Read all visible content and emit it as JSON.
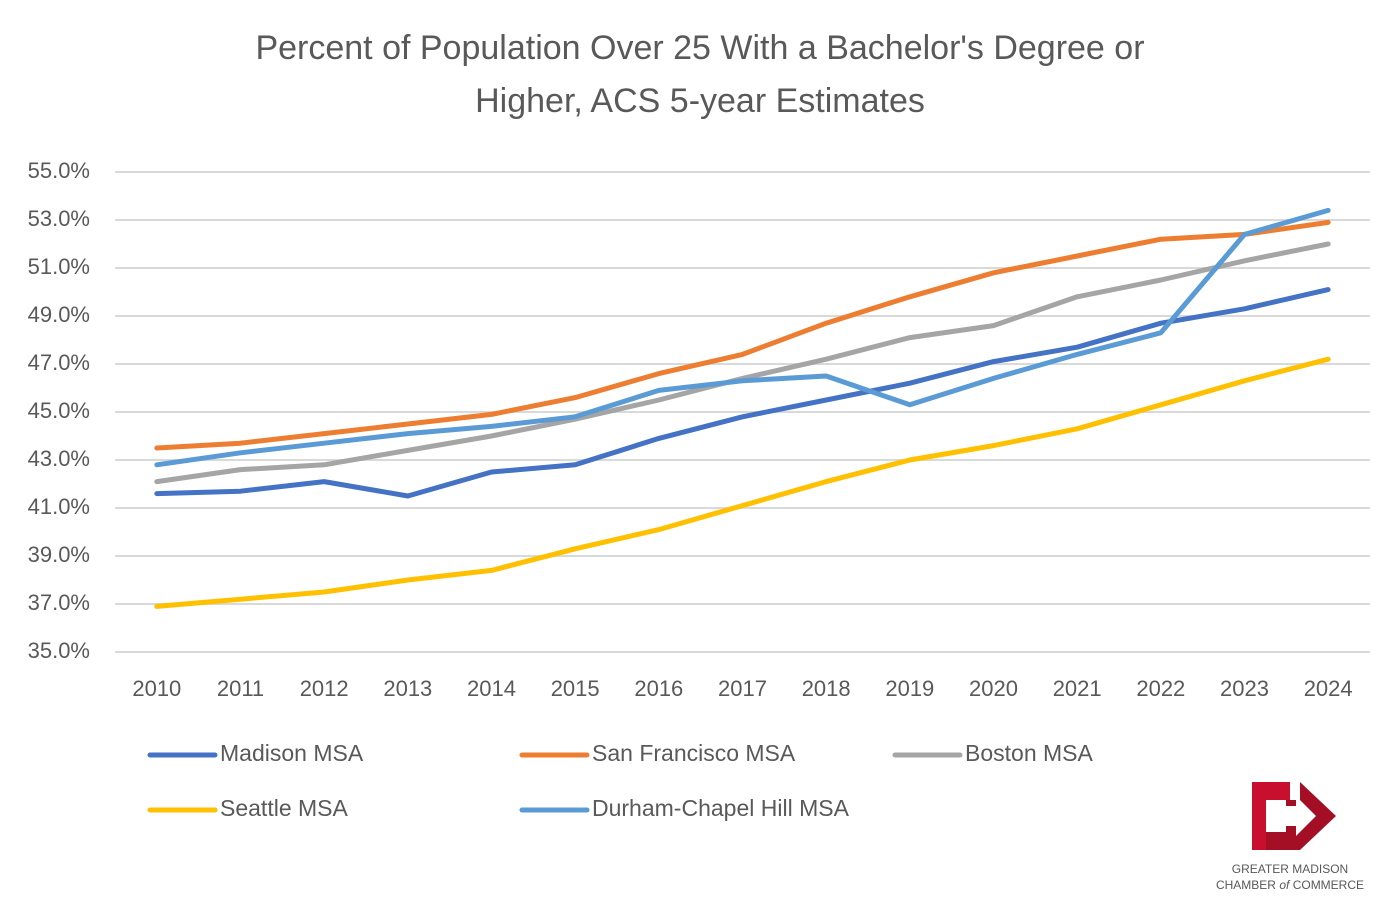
{
  "chart_data": {
    "type": "line",
    "title": [
      "Percent of Population Over 25 With a Bachelor's Degree or",
      "Higher, ACS 5-year Estimates"
    ],
    "categories": [
      "2010",
      "2011",
      "2012",
      "2013",
      "2014",
      "2015",
      "2016",
      "2017",
      "2018",
      "2019",
      "2020",
      "2021",
      "2022",
      "2023",
      "2024"
    ],
    "series": [
      {
        "name": "Madison MSA",
        "color": "#4472c4",
        "values": [
          41.6,
          41.7,
          42.1,
          41.5,
          42.5,
          42.8,
          43.9,
          44.8,
          45.5,
          46.2,
          47.1,
          47.7,
          48.7,
          49.3,
          50.1
        ]
      },
      {
        "name": "San Francisco MSA",
        "color": "#ed7d31",
        "values": [
          43.5,
          43.7,
          44.1,
          44.5,
          44.9,
          45.6,
          46.6,
          47.4,
          48.7,
          49.8,
          50.8,
          51.5,
          52.2,
          52.4,
          52.9
        ]
      },
      {
        "name": "Boston MSA",
        "color": "#a5a5a5",
        "values": [
          42.1,
          42.6,
          42.8,
          43.4,
          44.0,
          44.7,
          45.5,
          46.4,
          47.2,
          48.1,
          48.6,
          49.8,
          50.5,
          51.3,
          52.0
        ]
      },
      {
        "name": "Seattle MSA",
        "color": "#ffc000",
        "values": [
          36.9,
          37.2,
          37.5,
          38.0,
          38.4,
          39.3,
          40.1,
          41.1,
          42.1,
          43.0,
          43.6,
          44.3,
          45.3,
          46.3,
          47.2
        ]
      },
      {
        "name": "Durham-Chapel Hill MSA",
        "color": "#5b9bd5",
        "values": [
          42.8,
          43.3,
          43.7,
          44.1,
          44.4,
          44.8,
          45.9,
          46.3,
          46.5,
          45.3,
          46.4,
          47.4,
          48.3,
          52.4,
          53.4
        ]
      }
    ],
    "ylim": [
      35,
      55
    ],
    "yticks": [
      {
        "value": 35,
        "label": "35.0%"
      },
      {
        "value": 37,
        "label": "37.0%"
      },
      {
        "value": 39,
        "label": "39.0%"
      },
      {
        "value": 41,
        "label": "41.0%"
      },
      {
        "value": 43,
        "label": "43.0%"
      },
      {
        "value": 45,
        "label": "45.0%"
      },
      {
        "value": 47,
        "label": "47.0%"
      },
      {
        "value": 49,
        "label": "49.0%"
      },
      {
        "value": 51,
        "label": "51.0%"
      },
      {
        "value": 53,
        "label": "53.0%"
      },
      {
        "value": 55,
        "label": "55.0%"
      }
    ],
    "grid": true,
    "legend": "bottom"
  },
  "logo": {
    "line1": "GREATER MADISON",
    "line2": [
      "CHAMBER",
      "of",
      "COMMERCE"
    ]
  }
}
